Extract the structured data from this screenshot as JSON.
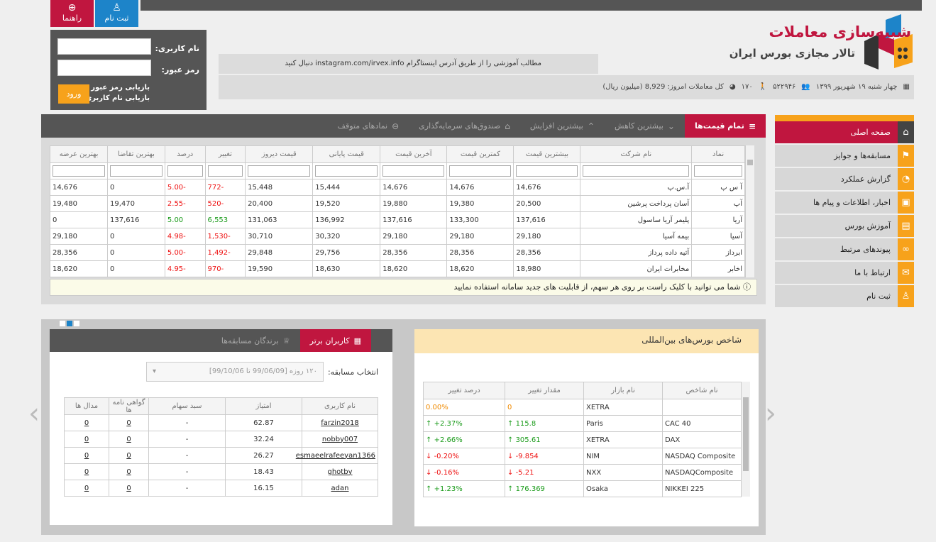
{
  "top_buttons": {
    "help": "راهنما",
    "register": "ثبت نام"
  },
  "login": {
    "username_label": "نام کاربری:",
    "password_label": "رمز عبور:",
    "enter": "ورود",
    "recover_password": "بازیابی رمز عبور",
    "recover_username": "بازیابی نام کاربری"
  },
  "brand": {
    "title": "شبیه‌سازی معاملات",
    "subtitle": "تالار مجازی بورس ایران"
  },
  "notice": "مطالب آموزشی را از طریق آدرس اینستاگرام instagram.com/irvex.info دنبال کنید",
  "stats": {
    "date": "چهار شنبه ۱۹ شهریور ۱۳۹۹",
    "users": "۵۲۲۹۴۶",
    "online": "۱۷۰",
    "trades": "کل معاملات امروز: 8,929 (میلیون ریال)"
  },
  "sidebar": [
    {
      "label": "صفحه اصلی",
      "icon": "home-icon",
      "glyph": "⌂"
    },
    {
      "label": "مسابقه‌ها و جوایز",
      "icon": "flag-icon",
      "glyph": "⚑"
    },
    {
      "label": "گزارش عملکرد",
      "icon": "pie-icon",
      "glyph": "◔"
    },
    {
      "label": "اخبار، اطلاعات و پیام ها",
      "icon": "tv-icon",
      "glyph": "▣"
    },
    {
      "label": "آموزش بورس",
      "icon": "book-icon",
      "glyph": "▤"
    },
    {
      "label": "پیوندهای مرتبط",
      "icon": "link-icon",
      "glyph": "∞"
    },
    {
      "label": "ارتباط با ما",
      "icon": "mail-icon",
      "glyph": "✉"
    },
    {
      "label": "ثبت نام",
      "icon": "person-icon",
      "glyph": "♙"
    }
  ],
  "market_tabs": [
    "تمام قیمت‌ها",
    "بیشترین کاهش",
    "بیشترین افزایش",
    "صندوق‌های سرمایه‌گذاری",
    "نمادهای متوقف"
  ],
  "market_columns": [
    "نماد",
    "نام شرکت",
    "بیشترین قیمت",
    "کمترین قیمت",
    "آخرین قیمت",
    "قیمت پایانی",
    "قیمت دیروز",
    "تغییر",
    "درصد",
    "بهترین تقاضا",
    "بهترین عرضه"
  ],
  "market_rows": [
    {
      "symbol": "آ س پ",
      "name": "آ.س.پ",
      "high": "14,676",
      "low": "14,676",
      "last": "14,676",
      "close": "15,444",
      "prev": "15,448",
      "change": "-772",
      "pct": "-5.00",
      "bid": "0",
      "ask": "14,676",
      "dir": "neg"
    },
    {
      "symbol": "آپ",
      "name": "آسان پرداخت پرشین",
      "high": "20,500",
      "low": "19,380",
      "last": "19,880",
      "close": "19,520",
      "prev": "20,400",
      "change": "-520",
      "pct": "-2.55",
      "bid": "19,470",
      "ask": "19,480",
      "dir": "neg"
    },
    {
      "symbol": "آریا",
      "name": "پلیمر آریا ساسول",
      "high": "137,616",
      "low": "133,300",
      "last": "137,616",
      "close": "136,992",
      "prev": "131,063",
      "change": "6,553",
      "pct": "5.00",
      "bid": "137,616",
      "ask": "0",
      "dir": "pos"
    },
    {
      "symbol": "آسیا",
      "name": "بیمه آسیا",
      "high": "29,180",
      "low": "29,180",
      "last": "29,180",
      "close": "30,320",
      "prev": "30,710",
      "change": "-1,530",
      "pct": "-4.98",
      "bid": "0",
      "ask": "29,180",
      "dir": "neg"
    },
    {
      "symbol": "ابرداز",
      "name": "آتیه داده پرداز",
      "high": "28,356",
      "low": "28,356",
      "last": "28,356",
      "close": "29,756",
      "prev": "29,848",
      "change": "-1,492",
      "pct": "-5.00",
      "bid": "0",
      "ask": "28,356",
      "dir": "neg"
    },
    {
      "symbol": "اخابر",
      "name": "مخابرات ایران",
      "high": "18,980",
      "low": "18,620",
      "last": "18,620",
      "close": "18,630",
      "prev": "19,590",
      "change": "-970",
      "pct": "-4.95",
      "bid": "0",
      "ask": "18,620",
      "dir": "neg"
    }
  ],
  "market_tip": "شما می توانید با کلیک راست بر روی هر سهم، از قابلیت های جدید سامانه استفاده نمایید",
  "world_index": {
    "title": "شاخص بورس‌های بین‌المللی",
    "columns": [
      "نام شاخص",
      "نام بازار",
      "مقدار تغییر",
      "درصد تغییر"
    ],
    "rows": [
      {
        "name": "",
        "market": "XETRA",
        "change": "0",
        "pct": "0.00%",
        "dir": "zero"
      },
      {
        "name": "CAC 40",
        "market": "Paris",
        "change": "115.8",
        "pct": "+2.37%",
        "dir": "up"
      },
      {
        "name": "DAX",
        "market": "XETRA",
        "change": "305.61",
        "pct": "+2.66%",
        "dir": "up"
      },
      {
        "name": "NASDAQ Composite",
        "market": "NIM",
        "change": "-9.854",
        "pct": "-0.20%",
        "dir": "down"
      },
      {
        "name": "NASDAQComposite",
        "market": "NXX",
        "change": "-5.21",
        "pct": "-0.16%",
        "dir": "down"
      },
      {
        "name": "NIKKEI 225",
        "market": "Osaka",
        "change": "176.369",
        "pct": "+1.23%",
        "dir": "up"
      }
    ]
  },
  "users_panel": {
    "tabs": [
      "کاربران برتر",
      "برندگان مسابقه‌ها"
    ],
    "select_label": "انتخاب مسابقه:",
    "select_value": "۱۲۰ روزه [99/06/09 تا 99/10/06]",
    "columns": [
      "نام کاربری",
      "امتیاز",
      "سبد سهام",
      "گواهی نامه ها",
      "مدال ها"
    ],
    "rows": [
      {
        "user": "farzin2018",
        "score": "62.87",
        "basket": "-",
        "cert": "0",
        "medal": "0"
      },
      {
        "user": "nobby007",
        "score": "32.24",
        "basket": "-",
        "cert": "0",
        "medal": "0"
      },
      {
        "user": "esmaeelrafeeyan1366",
        "score": "26.27",
        "basket": "-",
        "cert": "0",
        "medal": "0"
      },
      {
        "user": "ghotby",
        "score": "18.43",
        "basket": "-",
        "cert": "0",
        "medal": "0"
      },
      {
        "user": "adan",
        "score": "16.15",
        "basket": "-",
        "cert": "0",
        "medal": "0"
      }
    ]
  }
}
